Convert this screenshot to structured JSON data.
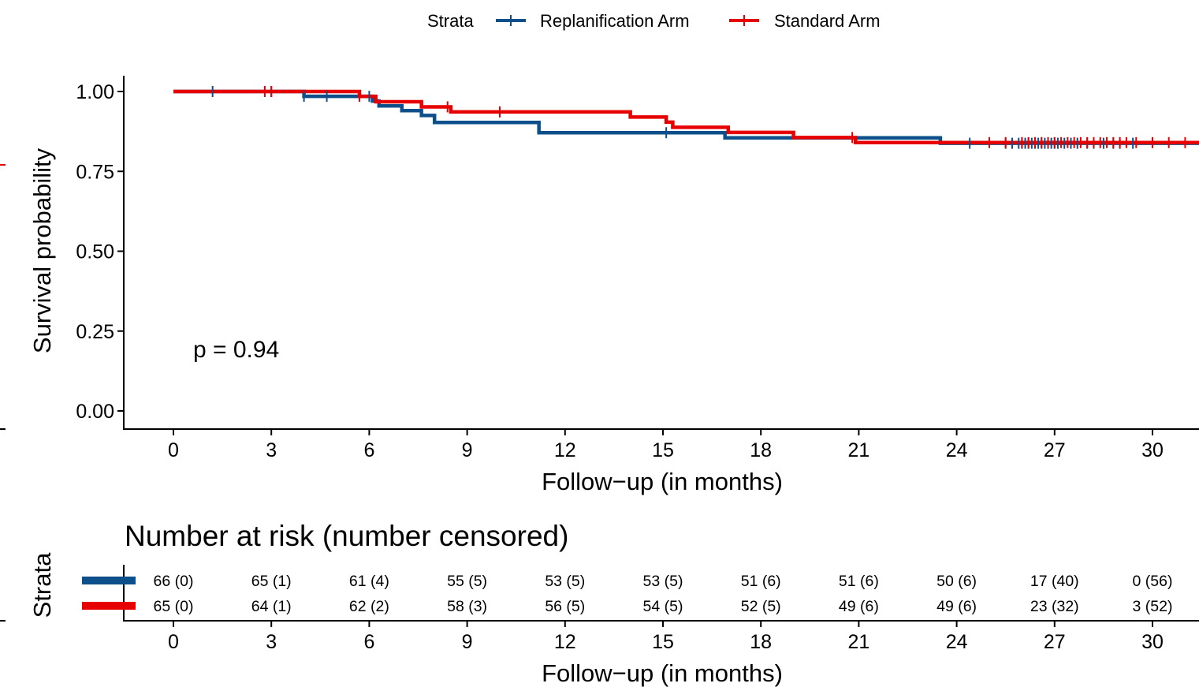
{
  "legend": {
    "title": "Strata",
    "items": [
      "Replanification Arm",
      "Standard Arm"
    ]
  },
  "colors": {
    "replanification": "#0d4f8b",
    "standard": "#e60000"
  },
  "p_value_label": "p = 0.94",
  "risk_table_title": "Number at risk (number censored)",
  "risk_table_ylabel": "Strata",
  "chart_data": {
    "type": "line",
    "subtype": "kaplan-meier step curve",
    "ylabel": "Survival probability",
    "xlabel": "Follow−up (in months)",
    "xlim": [
      -1.6,
      31.5
    ],
    "ylim": [
      0,
      1
    ],
    "x_ticks": [
      0,
      3,
      6,
      9,
      12,
      15,
      18,
      21,
      24,
      27,
      30
    ],
    "y_ticks": [
      "0.00",
      "0.25",
      "0.50",
      "0.75",
      "1.00"
    ],
    "legend_position": "top",
    "grid": false,
    "series": [
      {
        "name": "Replanification Arm",
        "color": "#0d4f8b",
        "steps": [
          [
            0,
            1.0
          ],
          [
            4.0,
            0.985
          ],
          [
            6.1,
            0.97
          ],
          [
            6.3,
            0.955
          ],
          [
            7.0,
            0.94
          ],
          [
            7.6,
            0.925
          ],
          [
            8.0,
            0.903
          ],
          [
            11.2,
            0.871
          ],
          [
            16.9,
            0.855
          ],
          [
            23.5,
            0.838
          ],
          [
            31.5,
            0.838
          ]
        ],
        "censor_times": [
          1.2,
          3.0,
          4.0,
          4.7,
          6.0,
          15.1,
          24.4,
          25.5,
          25.7,
          25.9,
          26.0,
          26.1,
          26.2,
          26.3,
          26.4,
          26.5,
          26.6,
          26.7,
          26.8,
          26.9,
          27.0,
          27.1,
          27.3,
          27.5,
          27.7,
          28.0,
          28.2,
          28.5,
          28.8,
          29.0,
          29.4
        ]
      },
      {
        "name": "Standard Arm",
        "color": "#e60000",
        "steps": [
          [
            0,
            1.0
          ],
          [
            5.7,
            0.985
          ],
          [
            6.2,
            0.968
          ],
          [
            7.6,
            0.952
          ],
          [
            8.5,
            0.936
          ],
          [
            14.0,
            0.92
          ],
          [
            15.1,
            0.904
          ],
          [
            15.3,
            0.888
          ],
          [
            17.0,
            0.872
          ],
          [
            19.0,
            0.856
          ],
          [
            20.9,
            0.84
          ],
          [
            31.5,
            0.84
          ]
        ],
        "censor_times": [
          2.8,
          3.0,
          5.7,
          8.4,
          10.0,
          20.8,
          25.0,
          25.5,
          26.0,
          26.2,
          26.4,
          26.6,
          26.8,
          27.0,
          27.2,
          27.4,
          27.6,
          27.8,
          28.0,
          28.2,
          28.4,
          28.6,
          28.8,
          29.0,
          29.2,
          29.5,
          30.0,
          30.5,
          31.0,
          31.5
        ]
      }
    ]
  },
  "risk_table": {
    "xlabel": "Follow−up (in months)",
    "x_ticks": [
      0,
      3,
      6,
      9,
      12,
      15,
      18,
      21,
      24,
      27,
      30
    ],
    "rows": [
      {
        "name": "Replanification Arm",
        "color": "#0d4f8b",
        "values": [
          "66 (0)",
          "65 (1)",
          "61 (4)",
          "55 (5)",
          "53 (5)",
          "53 (5)",
          "51 (6)",
          "51 (6)",
          "50 (6)",
          "17 (40)",
          "0 (56)"
        ]
      },
      {
        "name": "Standard Arm",
        "color": "#e60000",
        "values": [
          "65 (0)",
          "64 (1)",
          "62 (2)",
          "58 (3)",
          "56 (5)",
          "54 (5)",
          "52 (5)",
          "49 (6)",
          "49 (6)",
          "23 (32)",
          "3 (52)"
        ]
      }
    ]
  }
}
